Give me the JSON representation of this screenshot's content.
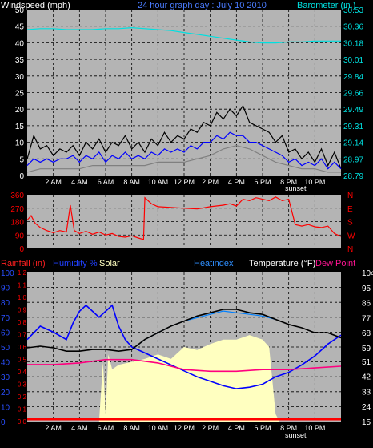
{
  "colors": {
    "background": "#000000",
    "plot_bg": "#b4b4b4",
    "grid": "#000000",
    "wind": "#0000ff",
    "gust": "#000000",
    "avg": "#808080",
    "barometer": "#00e0e0",
    "direction": "#ff0000",
    "humidity": "#0000ff",
    "temperature": "#000000",
    "heatindex": "#0080ff",
    "dewpoint": "#ff007f",
    "solar": "#ffffc0",
    "rain": "#ff0000",
    "white": "#ffffff"
  },
  "header": {
    "windspeed_label": "Windspeed (mph)",
    "title": "24 hour graph day : July 10 2010",
    "barometer_label": "Barometer (in.)"
  },
  "legend_bottom": {
    "rainfall": "Rainfall (in)",
    "humidity": "Humidity %",
    "solar": "Solar",
    "heatindex": "Heatindex",
    "temperature": "Temperature (°F)",
    "dewpoint": "Dew Point"
  },
  "sunset_label": "sunset",
  "chart_data": [
    {
      "type": "line",
      "name": "wind",
      "xlim": [
        0,
        24
      ],
      "ylabel": "Windspeed (mph)",
      "ylim": [
        0,
        50
      ],
      "yticks": [
        0,
        5,
        10,
        15,
        20,
        25,
        30,
        35,
        40,
        45,
        50
      ],
      "y2label": "Barometer (in.)",
      "y2ticks": [
        "28.79",
        "28.97",
        "29.14",
        "29.31",
        "29.49",
        "29.66",
        "29.84",
        "30.01",
        "30.18",
        "30.36",
        "30.53"
      ],
      "xticks": [
        "2 AM",
        "4 AM",
        "6 AM",
        "8 AM",
        "10 AM",
        "12 PM",
        "2 PM",
        "4 PM",
        "6 PM",
        "8 PM",
        "10 PM"
      ],
      "series": [
        {
          "name": "gust",
          "x": [
            0,
            0.5,
            1,
            1.5,
            2,
            2.5,
            3,
            3.5,
            4,
            4.5,
            5,
            5.5,
            6,
            6.5,
            7,
            7.5,
            8,
            8.5,
            9,
            9.5,
            10,
            10.5,
            11,
            11.5,
            12,
            12.5,
            13,
            13.5,
            14,
            14.5,
            15,
            15.5,
            16,
            16.5,
            17,
            17.5,
            18,
            18.5,
            19,
            19.5,
            20,
            20.5,
            21,
            21.5,
            22,
            22.5,
            23,
            23.5,
            24
          ],
          "values": [
            5,
            12,
            8,
            9,
            6,
            8,
            7,
            9,
            6,
            10,
            8,
            11,
            7,
            10,
            9,
            12,
            8,
            10,
            7,
            11,
            9,
            13,
            10,
            12,
            11,
            14,
            13,
            16,
            15,
            19,
            17,
            20,
            18,
            21,
            16,
            15,
            14,
            13,
            10,
            12,
            7,
            8,
            5,
            7,
            4,
            8,
            3,
            7,
            2
          ]
        },
        {
          "name": "wind",
          "x": [
            0,
            0.5,
            1,
            1.5,
            2,
            2.5,
            3,
            3.5,
            4,
            4.5,
            5,
            5.5,
            6,
            6.5,
            7,
            7.5,
            8,
            8.5,
            9,
            9.5,
            10,
            10.5,
            11,
            11.5,
            12,
            12.5,
            13,
            13.5,
            14,
            14.5,
            15,
            15.5,
            16,
            16.5,
            17,
            17.5,
            18,
            18.5,
            19,
            19.5,
            20,
            20.5,
            21,
            21.5,
            22,
            22.5,
            23,
            23.5,
            24
          ],
          "values": [
            3,
            5,
            4,
            5,
            4,
            5,
            5,
            6,
            4,
            6,
            5,
            7,
            4,
            6,
            5,
            7,
            5,
            6,
            5,
            7,
            6,
            8,
            7,
            8,
            7,
            9,
            8,
            10,
            10,
            12,
            11,
            13,
            12,
            12,
            10,
            10,
            9,
            8,
            7,
            6,
            4,
            5,
            3,
            4,
            3,
            5,
            2,
            4,
            2
          ]
        },
        {
          "name": "avg",
          "x": [
            0,
            1,
            2,
            3,
            4,
            5,
            6,
            7,
            8,
            9,
            10,
            11,
            12,
            13,
            14,
            15,
            16,
            17,
            18,
            19,
            20,
            21,
            22,
            23,
            24
          ],
          "values": [
            1,
            2,
            2,
            2,
            2,
            3,
            3,
            3,
            3,
            3,
            4,
            4,
            4,
            5,
            6,
            8,
            9,
            8,
            6,
            4,
            3,
            2,
            2,
            1,
            1
          ]
        },
        {
          "name": "barometer",
          "x": [
            0,
            1,
            2,
            3,
            4,
            5,
            6,
            7,
            8,
            9,
            10,
            11,
            12,
            13,
            14,
            15,
            16,
            17,
            18,
            19,
            20,
            21,
            22,
            23,
            24
          ],
          "values": [
            30.32,
            30.33,
            30.33,
            30.32,
            30.32,
            30.32,
            30.33,
            30.33,
            30.34,
            30.33,
            30.32,
            30.31,
            30.29,
            30.27,
            30.25,
            30.23,
            30.21,
            30.19,
            30.18,
            30.18,
            30.19,
            30.19,
            30.2,
            30.2,
            30.2
          ]
        }
      ]
    },
    {
      "type": "line",
      "name": "direction",
      "xlim": [
        0,
        24
      ],
      "ylim": [
        0,
        360
      ],
      "yticks": [
        0,
        90,
        180,
        270,
        360
      ],
      "y2ticks": [
        "N",
        "W",
        "S",
        "E",
        "N"
      ],
      "xticks": [
        "2 AM",
        "4 AM",
        "6 AM",
        "8 AM",
        "10 AM",
        "12 PM",
        "2 PM",
        "4 PM",
        "6 PM",
        "8 PM",
        "10 PM"
      ],
      "series": [
        {
          "name": "direction",
          "x": [
            0,
            0.3,
            0.6,
            1,
            1.5,
            2,
            2.5,
            3,
            3.3,
            3.6,
            4,
            4.5,
            5,
            5.5,
            6,
            6.5,
            7,
            7.5,
            8,
            8.5,
            8.9,
            9.0,
            9.5,
            10,
            11,
            12,
            13,
            14,
            15,
            15.5,
            16,
            16.5,
            17,
            17.5,
            18,
            18.5,
            19,
            19.5,
            20,
            20.5,
            21,
            21.5,
            22,
            22.5,
            23,
            23.5,
            24
          ],
          "values": [
            190,
            220,
            170,
            140,
            120,
            105,
            120,
            110,
            290,
            120,
            100,
            115,
            95,
            110,
            90,
            100,
            80,
            75,
            85,
            70,
            60,
            340,
            300,
            280,
            275,
            270,
            265,
            280,
            290,
            300,
            285,
            330,
            320,
            340,
            330,
            320,
            345,
            320,
            330,
            160,
            150,
            160,
            145,
            140,
            150,
            100,
            80
          ]
        }
      ]
    },
    {
      "type": "line",
      "name": "weather",
      "xlim": [
        0,
        24
      ],
      "yticks_left_rain": [
        "0.0",
        "0.1",
        "0.2",
        "0.3",
        "0.4",
        "0.5",
        "0.6",
        "0.7",
        "0.8",
        "0.9",
        "1.0",
        "1.1",
        "1.2"
      ],
      "ylim_humidity": [
        0,
        100
      ],
      "yticks_humidity": [
        0,
        10,
        20,
        30,
        40,
        50,
        60,
        70,
        80,
        90,
        100
      ],
      "ylim_temperature": [
        15,
        104
      ],
      "yticks_temperature": [
        15,
        24,
        33,
        42,
        51,
        59,
        68,
        77,
        86,
        95,
        104
      ],
      "xticks": [
        "2 AM",
        "4 AM",
        "6 AM",
        "8 AM",
        "10 AM",
        "12 PM",
        "2 PM",
        "4 PM",
        "6 PM",
        "8 PM",
        "10 PM"
      ],
      "series": [
        {
          "name": "solar",
          "x": [
            0,
            5.5,
            5.8,
            6.0,
            6.2,
            6.5,
            7,
            8,
            9,
            10,
            11,
            12,
            13,
            14,
            15,
            16,
            17,
            18,
            18.5,
            19,
            19.3,
            24
          ],
          "values": [
            0,
            0,
            40,
            5,
            45,
            35,
            38,
            40,
            42,
            45,
            42,
            50,
            48,
            52,
            55,
            55,
            58,
            55,
            50,
            5,
            0,
            0
          ]
        },
        {
          "name": "humidity",
          "x": [
            0,
            1,
            2,
            3,
            3.5,
            4,
            4.5,
            5,
            5.5,
            6,
            6.5,
            7,
            7.5,
            8,
            9,
            10,
            11,
            12,
            13,
            14,
            15,
            16,
            17,
            18,
            19,
            20,
            21,
            22,
            23,
            24
          ],
          "values": [
            55,
            64,
            60,
            55,
            66,
            74,
            78,
            74,
            70,
            74,
            78,
            64,
            55,
            50,
            46,
            42,
            38,
            34,
            30,
            27,
            24,
            22,
            23,
            25,
            30,
            33,
            38,
            44,
            52,
            58
          ]
        },
        {
          "name": "temperature",
          "x": [
            0,
            1,
            2,
            3,
            4,
            5,
            6,
            7,
            8,
            9,
            10,
            11,
            12,
            13,
            14,
            15,
            15.5,
            16,
            17,
            18,
            19,
            20,
            21,
            22,
            23,
            24
          ],
          "values": [
            59,
            60,
            59,
            57,
            57,
            58,
            58,
            57,
            58,
            64,
            68,
            72,
            75,
            78,
            80,
            82,
            82,
            82,
            80,
            79,
            76,
            73,
            71,
            68,
            68,
            65
          ]
        },
        {
          "name": "heatindex",
          "x": [
            8,
            9,
            10,
            11,
            12,
            13,
            14,
            15,
            16,
            17,
            18,
            19
          ],
          "values": [
            58,
            64,
            68,
            72,
            75,
            77,
            79,
            81,
            80,
            79,
            78,
            76
          ]
        },
        {
          "name": "dewpoint",
          "x": [
            0,
            2,
            4,
            6,
            8,
            10,
            11,
            12,
            14,
            16,
            18,
            20,
            22,
            24
          ],
          "values": [
            49,
            49,
            50,
            52,
            52,
            50,
            48,
            46,
            45,
            45,
            46,
            46,
            47,
            48
          ]
        }
      ]
    }
  ]
}
